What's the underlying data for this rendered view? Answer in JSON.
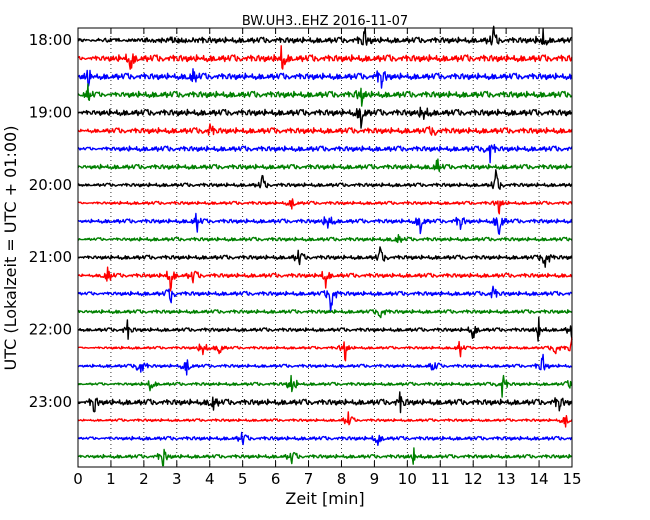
{
  "chart_data": {
    "type": "line",
    "title": "BW.UH3..EHZ 2016-11-07",
    "xlabel": "Zeit  [min]",
    "ylabel": "UTC (Lokalzeit = UTC + 01:00)",
    "xlim": [
      0,
      15
    ],
    "x_ticks": [
      "0",
      "1",
      "2",
      "3",
      "4",
      "5",
      "6",
      "7",
      "8",
      "9",
      "10",
      "11",
      "12",
      "13",
      "14",
      "15"
    ],
    "y_tick_labels": [
      "18:00",
      "19:00",
      "20:00",
      "21:00",
      "22:00",
      "23:00"
    ],
    "traces_per_hour": 4,
    "minutes_per_trace": 15,
    "grid": "vertical dotted at each minute",
    "trace_colors": [
      "#000000",
      "#ff0000",
      "#0000ff",
      "#008000"
    ],
    "series": [
      {
        "start": "18:00",
        "color": "#000000",
        "amplitude": 0.55,
        "events": [
          {
            "t": 8.7,
            "a": 0.9
          },
          {
            "t": 12.6,
            "a": 0.9
          },
          {
            "t": 14.1,
            "a": 0.8
          }
        ]
      },
      {
        "start": "18:15",
        "color": "#ff0000",
        "amplitude": 0.65,
        "events": [
          {
            "t": 1.6,
            "a": 0.8
          },
          {
            "t": 6.2,
            "a": 0.9
          }
        ]
      },
      {
        "start": "18:30",
        "color": "#0000ff",
        "amplitude": 0.6,
        "events": [
          {
            "t": 0.3,
            "a": 0.9
          },
          {
            "t": 3.5,
            "a": 0.8
          },
          {
            "t": 9.2,
            "a": 1.0
          }
        ]
      },
      {
        "start": "18:45",
        "color": "#008000",
        "amplitude": 0.6,
        "events": [
          {
            "t": 0.3,
            "a": 1.0
          },
          {
            "t": 8.6,
            "a": 0.8
          }
        ]
      },
      {
        "start": "19:00",
        "color": "#000000",
        "amplitude": 0.6,
        "events": [
          {
            "t": 8.6,
            "a": 1.1
          },
          {
            "t": 10.5,
            "a": 0.8
          }
        ]
      },
      {
        "start": "19:15",
        "color": "#ff0000",
        "amplitude": 0.55,
        "events": [
          {
            "t": 4.0,
            "a": 0.6
          },
          {
            "t": 10.8,
            "a": 0.6
          }
        ]
      },
      {
        "start": "19:30",
        "color": "#0000ff",
        "amplitude": 0.5,
        "events": [
          {
            "t": 12.5,
            "a": 0.9
          }
        ]
      },
      {
        "start": "19:45",
        "color": "#008000",
        "amplitude": 0.45,
        "events": [
          {
            "t": 10.9,
            "a": 0.7
          }
        ]
      },
      {
        "start": "20:00",
        "color": "#000000",
        "amplitude": 0.35,
        "events": [
          {
            "t": 5.6,
            "a": 0.6
          },
          {
            "t": 12.7,
            "a": 1.1
          }
        ]
      },
      {
        "start": "20:15",
        "color": "#ff0000",
        "amplitude": 0.3,
        "events": [
          {
            "t": 6.5,
            "a": 0.5
          },
          {
            "t": 12.8,
            "a": 0.7
          }
        ]
      },
      {
        "start": "20:30",
        "color": "#0000ff",
        "amplitude": 0.4,
        "events": [
          {
            "t": 3.6,
            "a": 0.7
          },
          {
            "t": 7.6,
            "a": 0.9
          },
          {
            "t": 10.4,
            "a": 0.9
          },
          {
            "t": 11.6,
            "a": 0.7
          },
          {
            "t": 12.8,
            "a": 1.4
          }
        ]
      },
      {
        "start": "20:45",
        "color": "#008000",
        "amplitude": 0.35,
        "events": [
          {
            "t": 9.7,
            "a": 0.5
          }
        ]
      },
      {
        "start": "21:00",
        "color": "#000000",
        "amplitude": 0.4,
        "events": [
          {
            "t": 6.7,
            "a": 0.6
          },
          {
            "t": 9.2,
            "a": 0.7
          },
          {
            "t": 14.2,
            "a": 1.2
          }
        ]
      },
      {
        "start": "21:15",
        "color": "#ff0000",
        "amplitude": 0.4,
        "events": [
          {
            "t": 0.9,
            "a": 1.0
          },
          {
            "t": 2.8,
            "a": 1.0
          },
          {
            "t": 3.5,
            "a": 0.6
          },
          {
            "t": 7.5,
            "a": 0.8
          }
        ]
      },
      {
        "start": "21:30",
        "color": "#0000ff",
        "amplitude": 0.4,
        "events": [
          {
            "t": 2.8,
            "a": 0.6
          },
          {
            "t": 7.7,
            "a": 1.4
          },
          {
            "t": 12.6,
            "a": 0.7
          }
        ]
      },
      {
        "start": "21:45",
        "color": "#008000",
        "amplitude": 0.35,
        "events": [
          {
            "t": 9.2,
            "a": 0.7
          }
        ]
      },
      {
        "start": "22:00",
        "color": "#000000",
        "amplitude": 0.35,
        "events": [
          {
            "t": 1.5,
            "a": 0.6
          },
          {
            "t": 12.0,
            "a": 0.7
          },
          {
            "t": 14.0,
            "a": 0.8
          },
          {
            "t": 15.0,
            "a": 0.9
          }
        ]
      },
      {
        "start": "22:15",
        "color": "#ff0000",
        "amplitude": 0.25,
        "events": [
          {
            "t": 3.8,
            "a": 0.9
          },
          {
            "t": 4.3,
            "a": 0.6
          },
          {
            "t": 8.1,
            "a": 0.9
          },
          {
            "t": 11.6,
            "a": 0.6
          },
          {
            "t": 14.5,
            "a": 0.7
          },
          {
            "t": 15.0,
            "a": 0.8
          }
        ]
      },
      {
        "start": "22:30",
        "color": "#0000ff",
        "amplitude": 0.3,
        "events": [
          {
            "t": 1.9,
            "a": 1.1
          },
          {
            "t": 3.3,
            "a": 0.8
          },
          {
            "t": 10.8,
            "a": 0.7
          },
          {
            "t": 14.1,
            "a": 0.9
          }
        ]
      },
      {
        "start": "22:45",
        "color": "#008000",
        "amplitude": 0.3,
        "events": [
          {
            "t": 2.2,
            "a": 0.6
          },
          {
            "t": 6.5,
            "a": 1.0
          },
          {
            "t": 12.9,
            "a": 0.9
          },
          {
            "t": 15.0,
            "a": 0.8
          }
        ]
      },
      {
        "start": "23:00",
        "color": "#000000",
        "amplitude": 0.55,
        "events": [
          {
            "t": 0.5,
            "a": 0.8
          },
          {
            "t": 4.1,
            "a": 0.7
          },
          {
            "t": 9.8,
            "a": 0.6
          },
          {
            "t": 14.6,
            "a": 0.7
          }
        ]
      },
      {
        "start": "23:15",
        "color": "#ff0000",
        "amplitude": 0.25,
        "events": [
          {
            "t": 8.2,
            "a": 0.8
          },
          {
            "t": 14.8,
            "a": 0.6
          }
        ]
      },
      {
        "start": "23:30",
        "color": "#0000ff",
        "amplitude": 0.35,
        "events": [
          {
            "t": 5.0,
            "a": 0.5
          },
          {
            "t": 9.1,
            "a": 0.6
          }
        ]
      },
      {
        "start": "23:45",
        "color": "#008000",
        "amplitude": 0.35,
        "events": [
          {
            "t": 2.6,
            "a": 0.8
          },
          {
            "t": 6.5,
            "a": 0.6
          },
          {
            "t": 10.2,
            "a": 0.5
          }
        ]
      }
    ]
  }
}
